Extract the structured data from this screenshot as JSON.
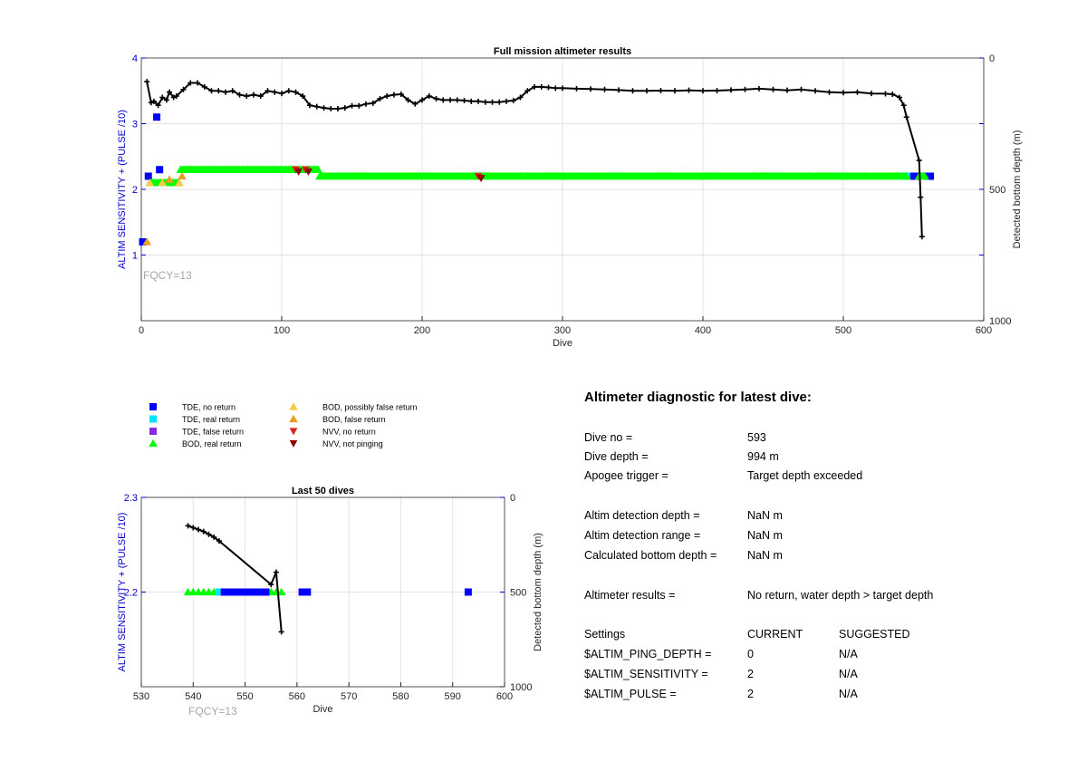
{
  "chart_data": [
    {
      "type": "scatter",
      "title": "Full mission altimeter results",
      "xlabel": "Dive",
      "ylabel": "ALTIM SENSITIVITY + (PULSE /10)",
      "y2label": "Detected bottom depth (m)",
      "xlim": [
        0,
        600
      ],
      "ylim": [
        0,
        4
      ],
      "y2lim": [
        1000,
        0
      ],
      "y2_reversed": true,
      "xticks": [
        "0",
        "100",
        "200",
        "300",
        "400",
        "500",
        "600"
      ],
      "yticks": [
        "1",
        "2",
        "3",
        "4"
      ],
      "y2ticks": [
        "0",
        "500",
        "1000"
      ],
      "grid": true,
      "annotation": "FQCY=13",
      "series": [
        {
          "name": "TDE, no return",
          "marker": "square",
          "color": "#0000ff",
          "points": [
            [
              1,
              1.2
            ],
            [
              5,
              2.2
            ],
            [
              11,
              3.1
            ],
            [
              13,
              2.3
            ],
            [
              546,
              2.2
            ],
            [
              549,
              2.2
            ],
            [
              552,
              2.2
            ],
            [
              560,
              2.2
            ],
            [
              562,
              2.2
            ]
          ]
        },
        {
          "name": "TDE, real return",
          "marker": "square",
          "color": "#00e5ff",
          "points": [
            [
              545,
              2.2
            ]
          ]
        },
        {
          "name": "BOD, real return",
          "marker": "triangle-up",
          "color": "#00ff00",
          "x_range": [
            [
              7,
              27,
              2.1
            ],
            [
              28,
              126,
              2.3
            ],
            [
              127,
              545,
              2.2
            ],
            [
              554,
              558,
              2.2
            ]
          ]
        },
        {
          "name": "BOD, possibly false return",
          "marker": "triangle-up",
          "color": "#f7c948",
          "points": [
            [
              6,
              2.1
            ],
            [
              15,
              2.1
            ],
            [
              27,
              2.1
            ]
          ]
        },
        {
          "name": "BOD, false return",
          "marker": "triangle-up",
          "color": "#e8a020",
          "points": [
            [
              4,
              1.2
            ],
            [
              20,
              2.15
            ],
            [
              29,
              2.2
            ]
          ]
        },
        {
          "name": "NVV, no return",
          "marker": "triangle-down",
          "color": "#e0201b",
          "points": [
            [
              110,
              2.3
            ],
            [
              117,
              2.3
            ],
            [
              240,
              2.2
            ]
          ]
        },
        {
          "name": "NVV, not pinging",
          "marker": "triangle-down",
          "color": "#8b0000",
          "points": [
            [
              112,
              2.27
            ],
            [
              119,
              2.27
            ],
            [
              242,
              2.17
            ]
          ]
        },
        {
          "name": "Detected bottom depth",
          "marker": "plus",
          "color": "#000000",
          "axis": "y2",
          "points": [
            [
              4,
              90
            ],
            [
              7,
              170
            ],
            [
              9,
              165
            ],
            [
              12,
              180
            ],
            [
              15,
              150
            ],
            [
              18,
              160
            ],
            [
              20,
              130
            ],
            [
              23,
              150
            ],
            [
              25,
              145
            ],
            [
              30,
              120
            ],
            [
              35,
              95
            ],
            [
              40,
              95
            ],
            [
              45,
              110
            ],
            [
              50,
              125
            ],
            [
              55,
              125
            ],
            [
              60,
              130
            ],
            [
              65,
              125
            ],
            [
              70,
              140
            ],
            [
              75,
              145
            ],
            [
              80,
              140
            ],
            [
              85,
              145
            ],
            [
              90,
              125
            ],
            [
              95,
              130
            ],
            [
              100,
              135
            ],
            [
              105,
              125
            ],
            [
              110,
              130
            ],
            [
              115,
              145
            ],
            [
              120,
              180
            ],
            [
              125,
              185
            ],
            [
              130,
              190
            ],
            [
              135,
              193
            ],
            [
              140,
              193
            ],
            [
              145,
              190
            ],
            [
              150,
              182
            ],
            [
              155,
              182
            ],
            [
              160,
              175
            ],
            [
              165,
              172
            ],
            [
              170,
              155
            ],
            [
              175,
              145
            ],
            [
              180,
              140
            ],
            [
              185,
              138
            ],
            [
              190,
              160
            ],
            [
              195,
              175
            ],
            [
              200,
              160
            ],
            [
              205,
              145
            ],
            [
              210,
              155
            ],
            [
              215,
              160
            ],
            [
              220,
              160
            ],
            [
              225,
              160
            ],
            [
              230,
              162
            ],
            [
              235,
              165
            ],
            [
              240,
              165
            ],
            [
              245,
              168
            ],
            [
              250,
              168
            ],
            [
              255,
              168
            ],
            [
              260,
              165
            ],
            [
              265,
              162
            ],
            [
              270,
              150
            ],
            [
              275,
              125
            ],
            [
              280,
              110
            ],
            [
              285,
              110
            ],
            [
              290,
              112
            ],
            [
              295,
              115
            ],
            [
              300,
              115
            ],
            [
              310,
              117
            ],
            [
              320,
              118
            ],
            [
              330,
              120
            ],
            [
              340,
              122
            ],
            [
              350,
              125
            ],
            [
              360,
              125
            ],
            [
              370,
              124
            ],
            [
              380,
              125
            ],
            [
              390,
              123
            ],
            [
              400,
              125
            ],
            [
              410,
              124
            ],
            [
              420,
              122
            ],
            [
              430,
              120
            ],
            [
              440,
              117
            ],
            [
              450,
              120
            ],
            [
              460,
              123
            ],
            [
              470,
              120
            ],
            [
              480,
              125
            ],
            [
              490,
              130
            ],
            [
              500,
              132
            ],
            [
              510,
              130
            ],
            [
              520,
              135
            ],
            [
              530,
              136
            ],
            [
              535,
              138
            ],
            [
              540,
              150
            ],
            [
              543,
              180
            ],
            [
              545,
              225
            ],
            [
              554,
              390
            ],
            [
              555,
              530
            ],
            [
              556,
              680
            ]
          ]
        }
      ]
    },
    {
      "type": "scatter",
      "title": "Last 50 dives",
      "xlabel": "Dive",
      "ylabel": "ALTIM SENSITIVITY + (PULSE /10)",
      "y2label": "Detected bottom depth (m)",
      "xlim": [
        530,
        600
      ],
      "ylim": [
        2.1,
        2.3
      ],
      "y2lim": [
        1000,
        0
      ],
      "y2_reversed": true,
      "xticks": [
        "530",
        "540",
        "550",
        "560",
        "570",
        "580",
        "590",
        "600"
      ],
      "yticks": [
        "2.2",
        "2.3"
      ],
      "y2ticks": [
        "0",
        "500",
        "1000"
      ],
      "grid": true,
      "annotation": "FQCY=13",
      "series": [
        {
          "name": "BOD, real return",
          "marker": "triangle-up",
          "color": "#00ff00",
          "points": [
            [
              539,
              2.2
            ],
            [
              540,
              2.2
            ],
            [
              541,
              2.2
            ],
            [
              542,
              2.2
            ],
            [
              543,
              2.2
            ],
            [
              544,
              2.2
            ],
            [
              555,
              2.2
            ],
            [
              556,
              2.2
            ],
            [
              557,
              2.2
            ]
          ]
        },
        {
          "name": "TDE, real return",
          "marker": "square",
          "color": "#00e5ff",
          "points": [
            [
              545,
              2.2
            ]
          ]
        },
        {
          "name": "TDE, no return",
          "marker": "square",
          "color": "#0000ff",
          "points": [
            [
              546,
              2.2
            ],
            [
              547,
              2.2
            ],
            [
              548,
              2.2
            ],
            [
              549,
              2.2
            ],
            [
              550,
              2.2
            ],
            [
              551,
              2.2
            ],
            [
              552,
              2.2
            ],
            [
              553,
              2.2
            ],
            [
              554,
              2.2
            ],
            [
              561,
              2.2
            ],
            [
              562,
              2.2
            ],
            [
              593,
              2.2
            ]
          ]
        },
        {
          "name": "Detected bottom depth",
          "marker": "plus",
          "color": "#000000",
          "axis": "y2",
          "points": [
            [
              539,
              150
            ],
            [
              540,
              160
            ],
            [
              541,
              170
            ],
            [
              542,
              180
            ],
            [
              543,
              195
            ],
            [
              544,
              210
            ],
            [
              545,
              230
            ],
            [
              555,
              460
            ],
            [
              556,
              395
            ],
            [
              557,
              710
            ]
          ]
        }
      ]
    }
  ],
  "legend": {
    "items": [
      {
        "label": "TDE, no return",
        "marker": "square",
        "color": "#0000ff"
      },
      {
        "label": "TDE, real return",
        "marker": "square",
        "color": "#00e5ff"
      },
      {
        "label": "TDE, false return",
        "marker": "square",
        "color": "#8a2be2"
      },
      {
        "label": "BOD, real return",
        "marker": "triangle-up",
        "color": "#00ff00"
      },
      {
        "label": "BOD, possibly false return",
        "marker": "triangle-up",
        "color": "#f7c948"
      },
      {
        "label": "BOD, false return",
        "marker": "triangle-up",
        "color": "#e8a020"
      },
      {
        "label": "NVV, no return",
        "marker": "triangle-down",
        "color": "#e0201b"
      },
      {
        "label": "NVV, not pinging",
        "marker": "triangle-down",
        "color": "#8b0000"
      }
    ]
  },
  "diagnostic": {
    "title": "Altimeter diagnostic for latest dive:",
    "rows": [
      {
        "label": "Dive no =",
        "value": "593"
      },
      {
        "label": "Dive depth =",
        "value": "994 m"
      },
      {
        "label": "Apogee trigger =",
        "value": "Target depth exceeded"
      },
      {
        "label": "Altim detection depth =",
        "value": "NaN m"
      },
      {
        "label": "Altim detection range =",
        "value": "NaN m"
      },
      {
        "label": "Calculated bottom depth =",
        "value": "NaN m"
      },
      {
        "label": "Altimeter results =",
        "value": "No return, water depth > target depth"
      }
    ],
    "settings": {
      "header": {
        "label": "Settings",
        "current": "CURRENT",
        "suggested": "SUGGESTED"
      },
      "rows": [
        {
          "label": "$ALTIM_PING_DEPTH =",
          "current": "0",
          "suggested": "N/A"
        },
        {
          "label": "$ALTIM_SENSITIVITY =",
          "current": "2",
          "suggested": "N/A"
        },
        {
          "label": "$ALTIM_PULSE =",
          "current": "2",
          "suggested": "N/A"
        }
      ]
    }
  }
}
